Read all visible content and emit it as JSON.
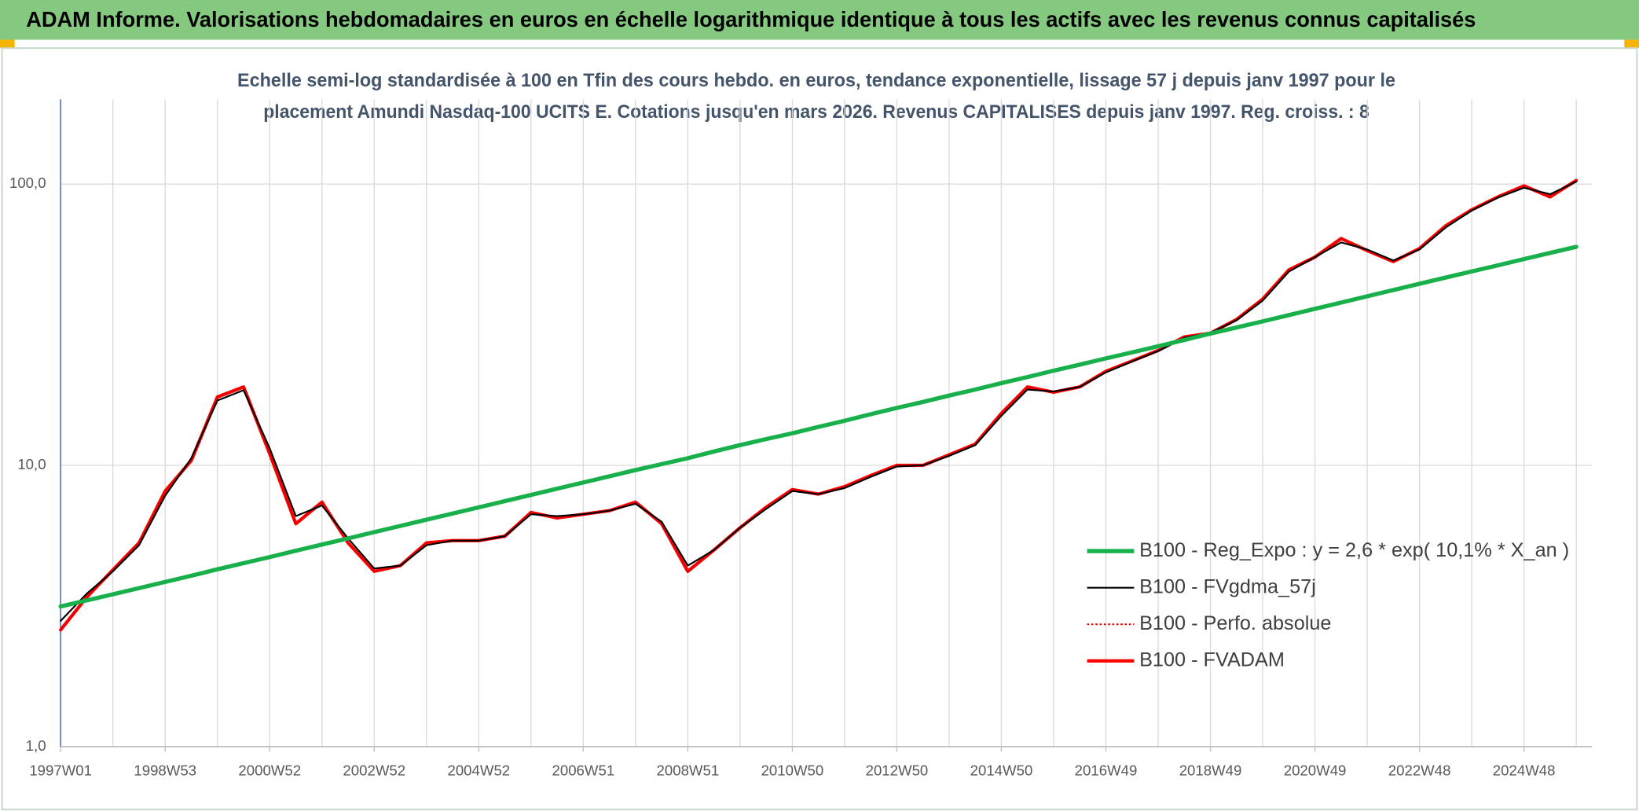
{
  "chart_data": {
    "type": "line",
    "title": "ADAM Informe. Valorisations hebdomadaires en euros en échelle logarithmique identique à tous les actifs avec les revenus connus capitalisés",
    "subtitle": [
      "Echelle semi-log standardisée à 100 en Tfin des cours hebdo. en euros, tendance exponentielle, lissage 57 j depuis janv 1997 pour le",
      "placement Amundi Nasdaq-100 UCITS E. Cotations jusqu'en mars 2026. Revenus CAPITALISES depuis janv 1997. Reg. croiss. : 8"
    ],
    "log_y": true,
    "grid": true,
    "legend": "right",
    "ylim": [
      1,
      200
    ],
    "yticks": [
      {
        "value": 1,
        "label": "1,0"
      },
      {
        "value": 10,
        "label": "10,0"
      },
      {
        "value": 100,
        "label": "100,0"
      }
    ],
    "categories": [
      "1997W01",
      null,
      null,
      null,
      "1998W53",
      null,
      null,
      null,
      "2000W52",
      null,
      null,
      null,
      "2002W52",
      null,
      null,
      null,
      "2004W52",
      null,
      null,
      null,
      "2006W51",
      null,
      null,
      null,
      "2008W51",
      null,
      null,
      null,
      "2010W50",
      null,
      null,
      null,
      "2012W50",
      null,
      null,
      null,
      "2014W50",
      null,
      null,
      null,
      "2016W49",
      null,
      null,
      null,
      "2018W49",
      null,
      null,
      null,
      "2020W49",
      null,
      null,
      null,
      "2022W48",
      null,
      null,
      null,
      "2024W48",
      null,
      null
    ],
    "series": [
      {
        "name": "B100 - Reg_Expo : y = 2,6 * exp( 10,1% *  X_an )",
        "color": "#18b04a",
        "style": "solid",
        "width": 4,
        "values": [
          3.15,
          3.31,
          3.48,
          3.66,
          3.85,
          4.05,
          4.27,
          4.49,
          4.72,
          4.97,
          5.23,
          5.5,
          5.79,
          6.09,
          6.41,
          6.74,
          7.09,
          7.46,
          7.85,
          8.26,
          8.69,
          9.14,
          9.62,
          10.1,
          10.6,
          11.2,
          11.8,
          12.4,
          13.0,
          13.7,
          14.4,
          15.2,
          16.0,
          16.8,
          17.7,
          18.6,
          19.6,
          20.6,
          21.7,
          22.8,
          24.0,
          25.2,
          26.5,
          27.9,
          29.4,
          30.9,
          32.5,
          34.2,
          36.0,
          37.9,
          39.9,
          42.0,
          44.2,
          46.5,
          48.9,
          51.4,
          54.1,
          56.9,
          59.8
        ]
      },
      {
        "name": "B100 - FVgdma_57j",
        "color": "#000000",
        "style": "solid",
        "width": 1.6,
        "values": [
          2.8,
          3.5,
          4.2,
          5.2,
          7.8,
          10.6,
          17,
          18.5,
          11.5,
          6.6,
          7.2,
          5.5,
          4.3,
          4.4,
          5.2,
          5.4,
          5.4,
          5.6,
          6.7,
          6.6,
          6.7,
          6.9,
          7.3,
          6.3,
          4.4,
          5.0,
          6.0,
          7.0,
          8.1,
          7.9,
          8.3,
          9.1,
          9.9,
          10,
          10.8,
          11.8,
          15,
          18.6,
          18.3,
          19,
          21.4,
          23.4,
          25.5,
          28.4,
          29.6,
          32.8,
          38.5,
          48.8,
          55,
          62,
          58.5,
          53.5,
          58.5,
          70,
          80.5,
          89.5,
          97,
          92,
          102
        ]
      },
      {
        "name": "B100 - Perfo. absolue",
        "color": "#e00000",
        "style": "dotted",
        "width": 1.2,
        "values": [
          2.6,
          3.4,
          4.25,
          5.3,
          8.1,
          10.4,
          17.5,
          19,
          11,
          6.2,
          7.4,
          5.3,
          4.2,
          4.4,
          5.3,
          5.4,
          5.4,
          5.6,
          6.8,
          6.5,
          6.7,
          6.9,
          7.4,
          6.2,
          4.2,
          5.0,
          6.0,
          7.1,
          8.2,
          7.9,
          8.4,
          9.2,
          10,
          10,
          10.9,
          11.9,
          15.3,
          19,
          18.2,
          19,
          21.6,
          23.5,
          25.6,
          28.6,
          29.5,
          33,
          39,
          49.5,
          55,
          64,
          58,
          53,
          59,
          71,
          81,
          90,
          98.5,
          90,
          103
        ]
      },
      {
        "name": "B100 - FVADAM",
        "color": "#ff0000",
        "style": "solid",
        "width": 3.2,
        "values": [
          2.6,
          3.4,
          4.25,
          5.3,
          8.1,
          10.4,
          17.5,
          19,
          11,
          6.2,
          7.4,
          5.3,
          4.2,
          4.4,
          5.3,
          5.4,
          5.4,
          5.6,
          6.8,
          6.5,
          6.7,
          6.9,
          7.4,
          6.2,
          4.2,
          5.0,
          6.0,
          7.1,
          8.2,
          7.9,
          8.4,
          9.2,
          10,
          10,
          10.9,
          11.9,
          15.3,
          19,
          18.2,
          19,
          21.6,
          23.5,
          25.6,
          28.6,
          29.5,
          33,
          39,
          49.5,
          55,
          64,
          58,
          53,
          59,
          71,
          81,
          90,
          98.5,
          90,
          103
        ]
      }
    ]
  }
}
